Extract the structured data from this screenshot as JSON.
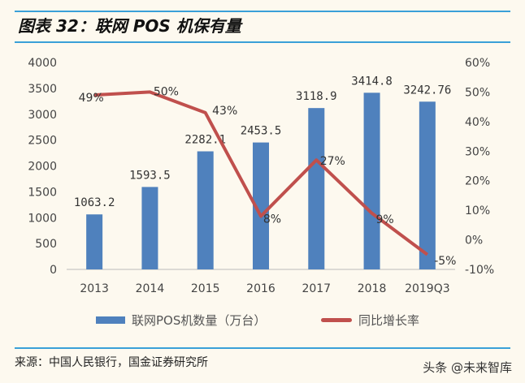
{
  "title": "图表 32：联网 POS 机保有量",
  "source": "来源：中国人民银行，国金证券研究所",
  "watermark": "头条 @未来智库",
  "chart_data": {
    "type": "bar+line",
    "categories": [
      "2013",
      "2014",
      "2015",
      "2016",
      "2017",
      "2018",
      "2019Q3"
    ],
    "series": [
      {
        "name": "联网POS机数量（万台）",
        "type": "bar",
        "axis": "left",
        "color": "#4f81bd",
        "values": [
          1063.2,
          1593.5,
          2282.1,
          2453.5,
          3118.9,
          3414.8,
          3242.76
        ],
        "labels": [
          "1063.2",
          "1593.5",
          "2282.1",
          "2453.5",
          "3118.9",
          "3414.8",
          "3242.76"
        ]
      },
      {
        "name": "同比增长率",
        "type": "line",
        "axis": "right",
        "color": "#c0504d",
        "values": [
          49,
          50,
          43,
          8,
          27,
          9,
          -5
        ],
        "labels": [
          "49%",
          "50%",
          "43%",
          "8%",
          "27%",
          "9%",
          "-5%"
        ]
      }
    ],
    "left_axis": {
      "range": [
        0,
        4000
      ],
      "ticks": [
        "0",
        "500",
        "1000",
        "1500",
        "2000",
        "2500",
        "3000",
        "3500",
        "4000"
      ]
    },
    "right_axis": {
      "range": [
        -10,
        60
      ],
      "ticks": [
        "-10%",
        "0%",
        "10%",
        "20%",
        "30%",
        "40%",
        "50%",
        "60%"
      ]
    },
    "grid": false,
    "legend": "bottom"
  }
}
